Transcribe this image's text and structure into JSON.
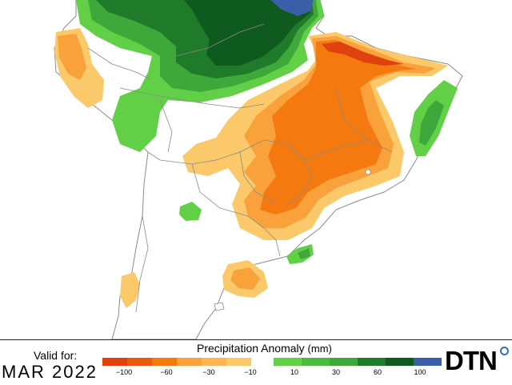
{
  "map": {
    "title": "Precipitation Anomaly",
    "unit": "(mm)",
    "valid_label": "Valid for:",
    "valid_date": "MAR 2022",
    "logo_text": "DTN"
  },
  "legend": {
    "dry": [
      {
        "label": "−100",
        "color": "#e0420f"
      },
      {
        "label": "−60",
        "color": "#f47a10"
      },
      {
        "label": "−30",
        "color": "#f9a23c"
      },
      {
        "label": "−10",
        "color": "#fcc96a"
      }
    ],
    "wet": [
      {
        "label": "10",
        "color": "#61d047"
      },
      {
        "label": "30",
        "color": "#3ea83a"
      },
      {
        "label": "60",
        "color": "#1f7a2a"
      },
      {
        "label": "100",
        "color": "#3b5ea8"
      }
    ],
    "colors": {
      "dry_extreme": "#e0420f",
      "dry_strong": "#f47a10",
      "dry_moderate": "#f9a23c",
      "dry_light": "#fcc96a",
      "wet_light": "#61d047",
      "wet_moderate": "#3ea83a",
      "wet_strong": "#1f7a2a",
      "wet_very_strong": "#0f5a1e",
      "wet_extreme": "#3b5ea8",
      "land": "#ffffff",
      "ocean": "#ffffff"
    }
  }
}
